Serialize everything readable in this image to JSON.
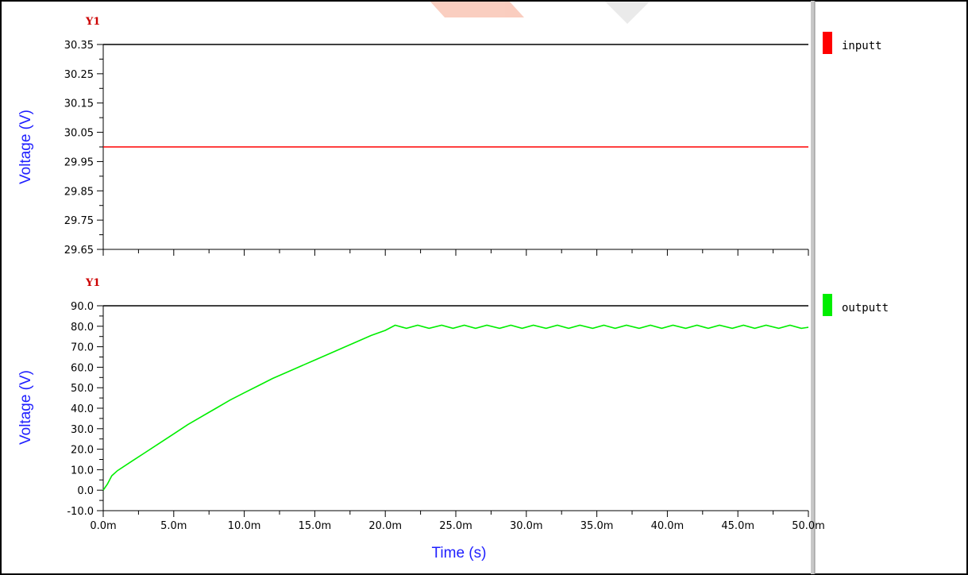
{
  "colors": {
    "axis_title": "#1f1fff",
    "y1_tag": "#cc0000",
    "border": "#000000",
    "divider": "#b8b8b8",
    "watermark": "#f07a5a"
  },
  "chart_data": [
    {
      "type": "line",
      "title": "",
      "panel_tag": "Y1",
      "ylabel": "Voltage (V)",
      "xlabel": "",
      "xlim": [
        0,
        50
      ],
      "ylim": [
        29.65,
        30.35
      ],
      "yticks": [
        "30.35",
        "30.25",
        "30.15",
        "30.05",
        "29.95",
        "29.85",
        "29.75",
        "29.65"
      ],
      "ytick_values": [
        30.35,
        30.25,
        30.15,
        30.05,
        29.95,
        29.85,
        29.75,
        29.65
      ],
      "grid": false,
      "legend_position": "right",
      "series": [
        {
          "name": "inputt",
          "color": "#ff0000",
          "x": [
            0,
            50
          ],
          "y": [
            30.0,
            30.0
          ]
        }
      ]
    },
    {
      "type": "line",
      "title": "",
      "panel_tag": "Y1",
      "ylabel": "Voltage (V)",
      "xlabel": "Time (s)",
      "xlim": [
        0,
        50
      ],
      "ylim": [
        -10,
        90
      ],
      "yticks": [
        "90.0",
        "80.0",
        "70.0",
        "60.0",
        "50.0",
        "40.0",
        "30.0",
        "20.0",
        "10.0",
        "0.0",
        "-10.0"
      ],
      "ytick_values": [
        90,
        80,
        70,
        60,
        50,
        40,
        30,
        20,
        10,
        0,
        -10
      ],
      "xticks": [
        "0.0m",
        "5.0m",
        "10.0m",
        "15.0m",
        "20.0m",
        "25.0m",
        "30.0m",
        "35.0m",
        "40.0m",
        "45.0m",
        "50.0m"
      ],
      "xtick_values": [
        0,
        5,
        10,
        15,
        20,
        25,
        30,
        35,
        40,
        45,
        50
      ],
      "x_unit_note": "x values in ms",
      "grid": false,
      "legend_position": "right",
      "series": [
        {
          "name": "outputt",
          "color": "#00ee00",
          "x": [
            0,
            0.3,
            0.6,
            1,
            2,
            3,
            4,
            5,
            6,
            7,
            8,
            9,
            10,
            11,
            12,
            13,
            14,
            15,
            16,
            17,
            18,
            19,
            20,
            20.7,
            21.5,
            22.3,
            23.1,
            24.0,
            24.8,
            25.6,
            26.4,
            27.2,
            28.1,
            28.9,
            29.7,
            30.5,
            31.4,
            32.2,
            33.0,
            33.8,
            34.7,
            35.5,
            36.3,
            37.1,
            38.0,
            38.8,
            39.6,
            40.4,
            41.3,
            42.1,
            42.9,
            43.7,
            44.6,
            45.4,
            46.2,
            47.0,
            47.9,
            48.7,
            49.5,
            50.0
          ],
          "y": [
            0,
            3,
            7,
            9.5,
            14,
            18.5,
            23,
            27.5,
            32,
            36,
            40,
            44,
            47.5,
            51,
            54.5,
            57.5,
            60.5,
            63.5,
            66.5,
            69.5,
            72.5,
            75.5,
            78,
            80.5,
            79,
            80.5,
            79,
            80.5,
            79,
            80.5,
            79,
            80.5,
            79,
            80.5,
            79,
            80.5,
            79,
            80.5,
            79,
            80.5,
            79,
            80.5,
            79,
            80.5,
            79,
            80.5,
            79,
            80.5,
            79,
            80.5,
            79,
            80.5,
            79,
            80.5,
            79,
            80.5,
            79,
            80.5,
            79,
            79.5
          ]
        }
      ]
    }
  ]
}
